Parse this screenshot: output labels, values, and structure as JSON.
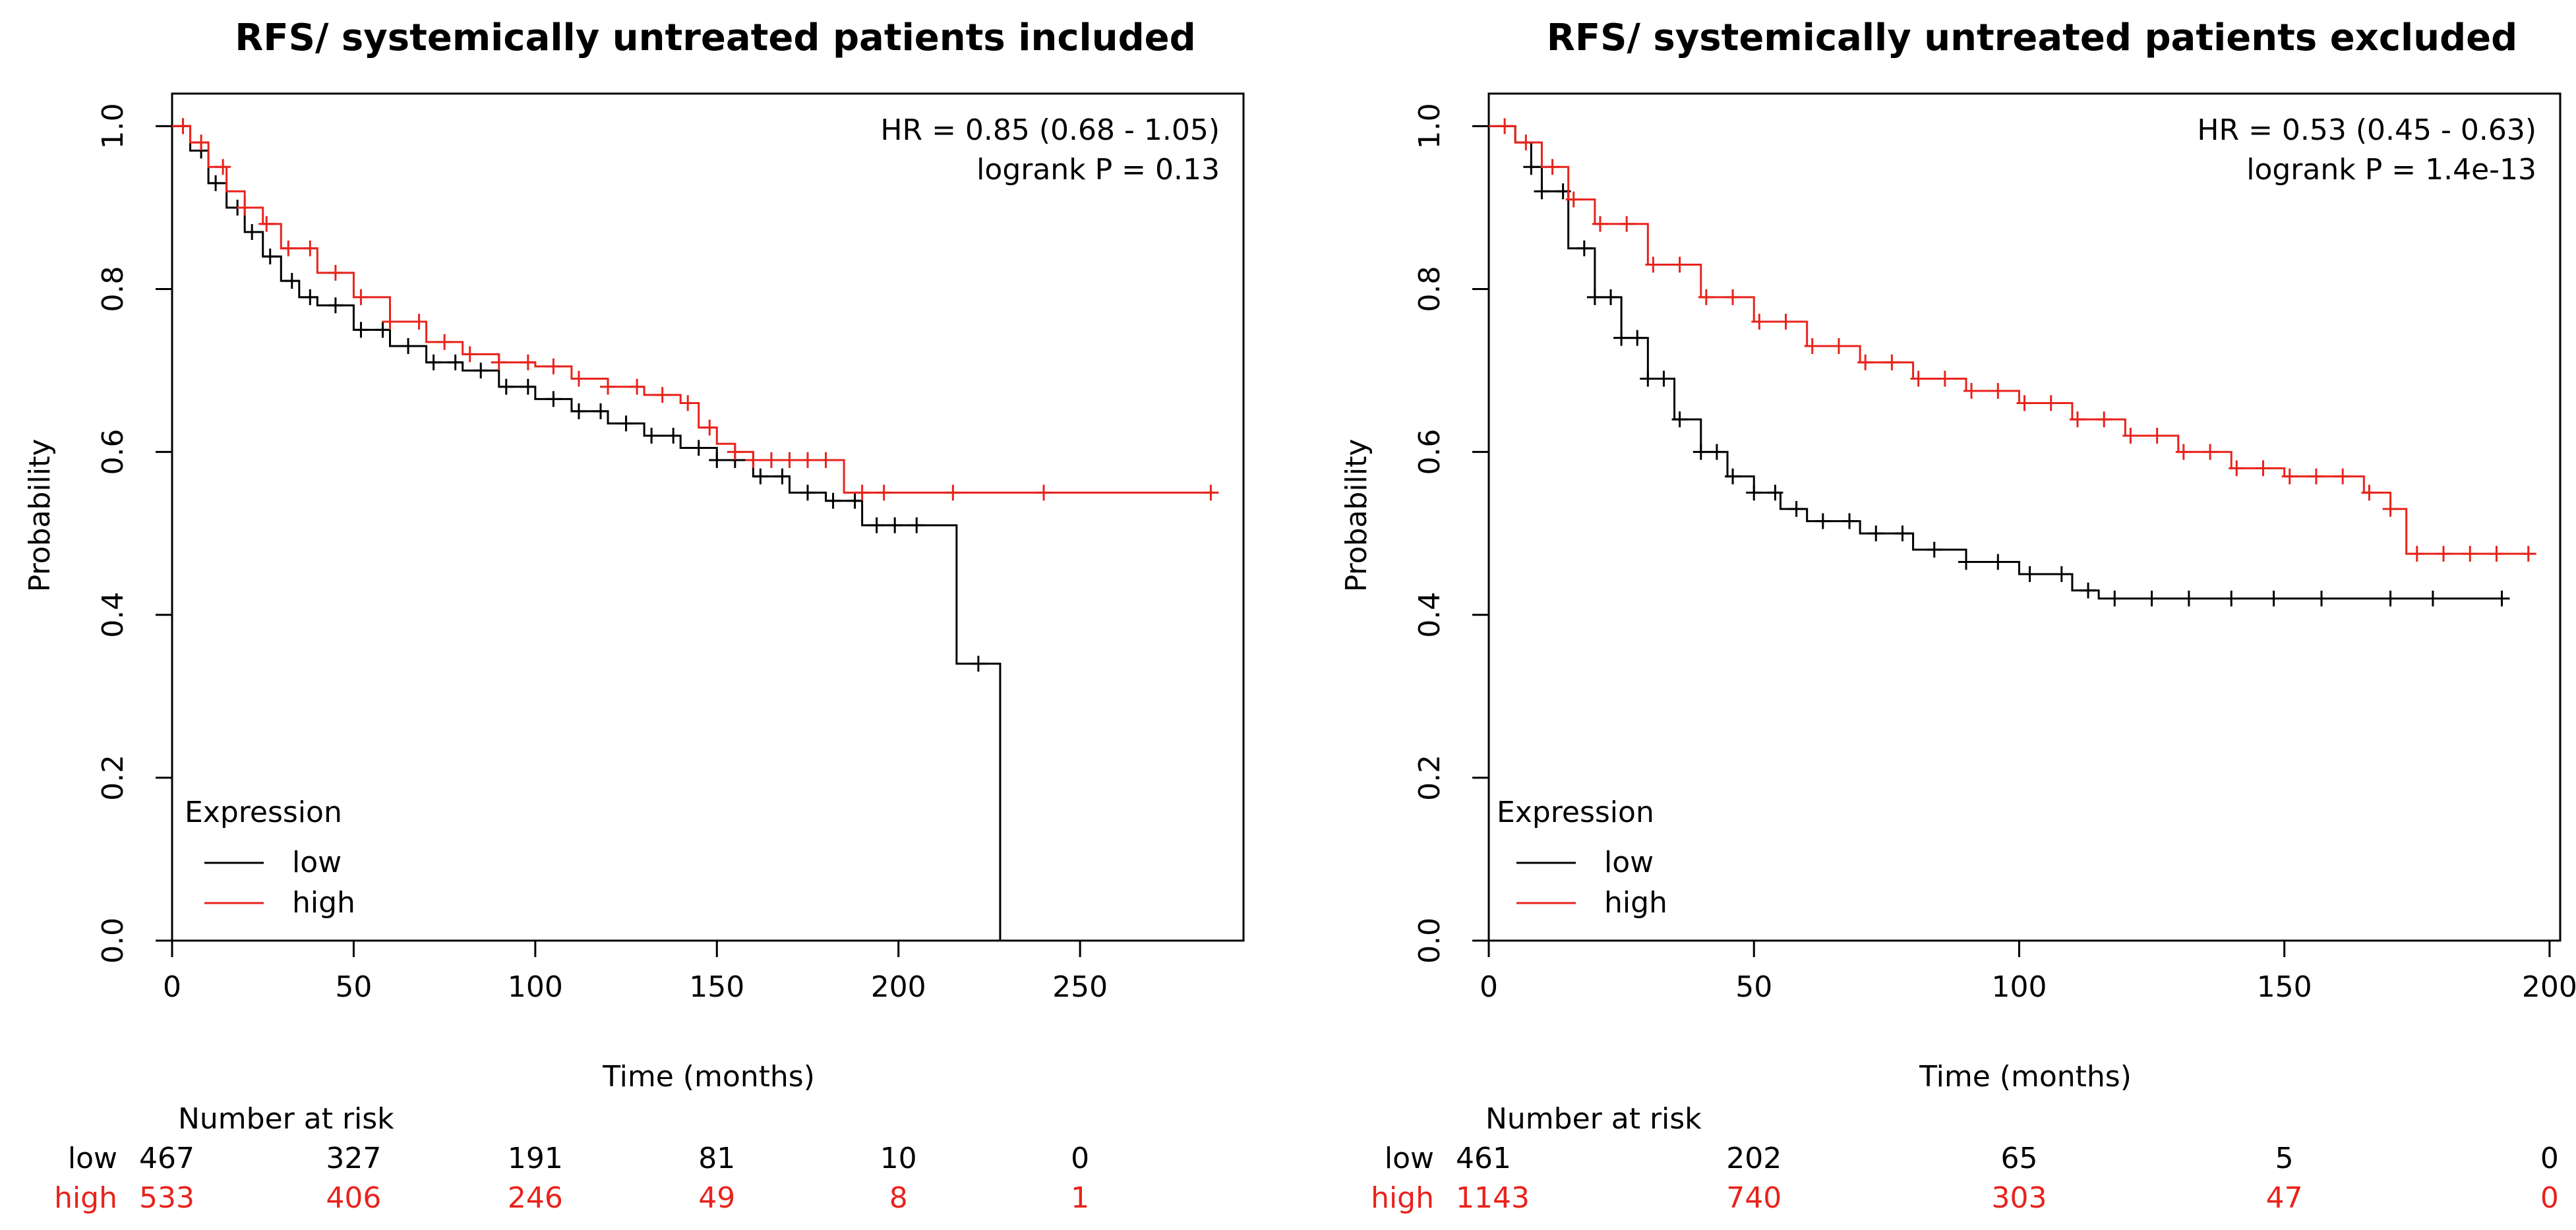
{
  "chart_data": [
    {
      "type": "line",
      "subtype": "kaplan-meier",
      "title": "RFS/ systemically untreated patients included",
      "xlabel": "Time (months)",
      "ylabel": "Probability",
      "xlim": [
        0,
        295
      ],
      "ylim": [
        0,
        1.04
      ],
      "xticks": [
        "0",
        "50",
        "100",
        "150",
        "200",
        "250"
      ],
      "yticks": [
        "0.0",
        "0.2",
        "0.4",
        "0.6",
        "0.8",
        "1.0"
      ],
      "annotation": [
        "HR = 0.85 (0.68 - 1.05)",
        "logrank P = 0.13"
      ],
      "legend_title": "Expression",
      "legend": [
        {
          "label": "low",
          "color": "#000000"
        },
        {
          "label": "high",
          "color": "#e8231c"
        }
      ],
      "series": [
        {
          "name": "low",
          "color": "#000000",
          "x": [
            0,
            5,
            10,
            15,
            20,
            25,
            30,
            35,
            40,
            50,
            60,
            70,
            80,
            90,
            100,
            110,
            120,
            130,
            140,
            150,
            160,
            170,
            180,
            190,
            200,
            210,
            216,
            216,
            228,
            228
          ],
          "y": [
            1.0,
            0.97,
            0.93,
            0.9,
            0.87,
            0.84,
            0.81,
            0.79,
            0.78,
            0.75,
            0.73,
            0.71,
            0.7,
            0.68,
            0.665,
            0.65,
            0.635,
            0.62,
            0.605,
            0.59,
            0.57,
            0.55,
            0.54,
            0.51,
            0.51,
            0.51,
            0.51,
            0.34,
            0.34,
            0.0
          ],
          "censor_x": [
            3,
            8,
            12,
            18,
            22,
            27,
            33,
            38,
            45,
            52,
            58,
            65,
            72,
            78,
            85,
            92,
            98,
            105,
            112,
            118,
            125,
            132,
            138,
            145,
            150,
            155,
            162,
            168,
            175,
            182,
            188,
            194,
            199,
            205,
            222
          ]
        },
        {
          "name": "high",
          "color": "#e8231c",
          "x": [
            0,
            5,
            10,
            15,
            20,
            25,
            30,
            40,
            50,
            60,
            70,
            80,
            90,
            100,
            110,
            120,
            130,
            140,
            145,
            150,
            155,
            160,
            180,
            185,
            190,
            250,
            287
          ],
          "y": [
            1.0,
            0.98,
            0.95,
            0.92,
            0.9,
            0.88,
            0.85,
            0.82,
            0.79,
            0.76,
            0.735,
            0.72,
            0.71,
            0.705,
            0.69,
            0.68,
            0.67,
            0.66,
            0.63,
            0.61,
            0.6,
            0.59,
            0.59,
            0.55,
            0.55,
            0.55,
            0.55
          ],
          "censor_x": [
            3,
            8,
            14,
            20,
            26,
            32,
            38,
            45,
            52,
            60,
            68,
            75,
            82,
            90,
            98,
            105,
            112,
            120,
            128,
            135,
            142,
            148,
            155,
            160,
            165,
            170,
            175,
            180,
            190,
            196,
            215,
            240,
            286
          ]
        }
      ],
      "risk_table": {
        "title": "Number at risk",
        "times": [
          0,
          50,
          100,
          150,
          200,
          250
        ],
        "rows": [
          {
            "label": "low",
            "color": "#000000",
            "values": [
              "467",
              "327",
              "191",
              "81",
              "10",
              "0"
            ]
          },
          {
            "label": "high",
            "color": "#e8231c",
            "values": [
              "533",
              "406",
              "246",
              "49",
              "8",
              "1"
            ]
          }
        ]
      }
    },
    {
      "type": "line",
      "subtype": "kaplan-meier",
      "title": "RFS/ systemically untreated patients excluded",
      "xlabel": "Time (months)",
      "ylabel": "Probability",
      "xlim": [
        0,
        202
      ],
      "ylim": [
        0,
        1.04
      ],
      "xticks": [
        "0",
        "50",
        "100",
        "150",
        "200"
      ],
      "yticks": [
        "0.0",
        "0.2",
        "0.4",
        "0.6",
        "0.8",
        "1.0"
      ],
      "annotation": [
        "HR = 0.53 (0.45 - 0.63)",
        "logrank P = 1.4e-13"
      ],
      "legend_title": "Expression",
      "legend": [
        {
          "label": "low",
          "color": "#000000"
        },
        {
          "label": "high",
          "color": "#e8231c"
        }
      ],
      "series": [
        {
          "name": "low",
          "color": "#000000",
          "x": [
            0,
            5,
            8,
            10,
            15,
            20,
            25,
            30,
            35,
            40,
            45,
            50,
            55,
            60,
            70,
            80,
            90,
            100,
            110,
            115,
            150,
            192
          ],
          "y": [
            1.0,
            0.98,
            0.95,
            0.92,
            0.85,
            0.79,
            0.74,
            0.69,
            0.64,
            0.6,
            0.57,
            0.55,
            0.53,
            0.515,
            0.5,
            0.48,
            0.465,
            0.45,
            0.43,
            0.42,
            0.42,
            0.42
          ],
          "censor_x": [
            8,
            10,
            14,
            18,
            20,
            23,
            25,
            28,
            30,
            33,
            36,
            40,
            43,
            46,
            50,
            54,
            58,
            63,
            68,
            73,
            78,
            84,
            90,
            96,
            102,
            108,
            113,
            118,
            125,
            132,
            140,
            148,
            157,
            170,
            178,
            191
          ]
        },
        {
          "name": "high",
          "color": "#e8231c",
          "x": [
            0,
            5,
            10,
            15,
            20,
            30,
            40,
            50,
            60,
            70,
            80,
            90,
            100,
            110,
            120,
            125,
            130,
            140,
            150,
            160,
            165,
            170,
            173,
            180,
            197
          ],
          "y": [
            1.0,
            0.98,
            0.95,
            0.91,
            0.88,
            0.83,
            0.79,
            0.76,
            0.73,
            0.71,
            0.69,
            0.675,
            0.66,
            0.64,
            0.62,
            0.62,
            0.6,
            0.58,
            0.57,
            0.57,
            0.55,
            0.53,
            0.475,
            0.475,
            0.475
          ],
          "censor_x": [
            3,
            7,
            12,
            16,
            21,
            26,
            31,
            36,
            41,
            46,
            51,
            56,
            61,
            66,
            71,
            76,
            81,
            86,
            91,
            96,
            101,
            106,
            111,
            116,
            121,
            126,
            131,
            136,
            141,
            146,
            151,
            156,
            161,
            166,
            170,
            175,
            180,
            185,
            190,
            196
          ]
        }
      ],
      "risk_table": {
        "title": "Number at risk",
        "times": [
          0,
          50,
          100,
          150,
          200
        ],
        "rows": [
          {
            "label": "low",
            "color": "#000000",
            "values": [
              "461",
              "202",
              "65",
              "5",
              "0"
            ]
          },
          {
            "label": "high",
            "color": "#e8231c",
            "values": [
              "1143",
              "740",
              "303",
              "47",
              "0"
            ]
          }
        ]
      }
    }
  ]
}
